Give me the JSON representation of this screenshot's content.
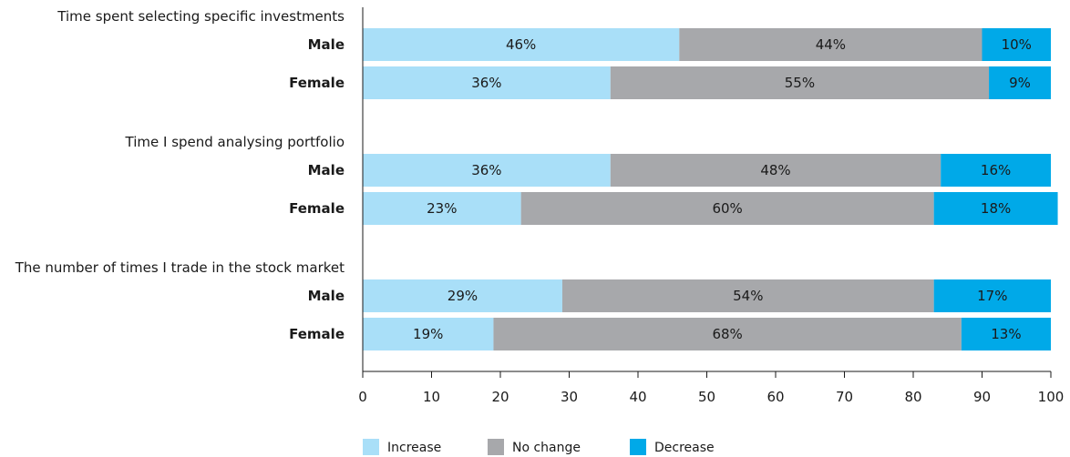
{
  "chart_data": {
    "type": "bar",
    "orientation": "horizontal",
    "stacked": true,
    "groups": [
      {
        "title": "Time spent selecting specific investments",
        "rows": [
          {
            "label": "Male",
            "values": [
              46,
              44,
              10
            ],
            "labels": [
              "46%",
              "44%",
              "10%"
            ]
          },
          {
            "label": "Female",
            "values": [
              36,
              55,
              9
            ],
            "labels": [
              "36%",
              "55%",
              "9%"
            ]
          }
        ]
      },
      {
        "title": "Time I spend analysing portfolio",
        "rows": [
          {
            "label": "Male",
            "values": [
              36,
              48,
              16
            ],
            "labels": [
              "36%",
              "48%",
              "16%"
            ]
          },
          {
            "label": "Female",
            "values": [
              23,
              60,
              18
            ],
            "labels": [
              "23%",
              "60%",
              "18%"
            ]
          }
        ]
      },
      {
        "title": "The number of times I trade in the stock market",
        "rows": [
          {
            "label": "Male",
            "values": [
              29,
              54,
              17
            ],
            "labels": [
              "29%",
              "54%",
              "17%"
            ]
          },
          {
            "label": "Female",
            "values": [
              19,
              68,
              13
            ],
            "labels": [
              "19%",
              "68%",
              "13%"
            ]
          }
        ]
      }
    ],
    "series": [
      {
        "name": "Increase",
        "color": "#a9dff8"
      },
      {
        "name": "No change",
        "color": "#a7a8ab"
      },
      {
        "name": "Decrease",
        "color": "#00a9e8"
      }
    ],
    "xlim": [
      0,
      100
    ],
    "xticks": [
      "0",
      "10",
      "20",
      "30",
      "40",
      "50",
      "60",
      "70",
      "80",
      "90",
      "100"
    ],
    "grid": false,
    "legend_position": "bottom"
  }
}
